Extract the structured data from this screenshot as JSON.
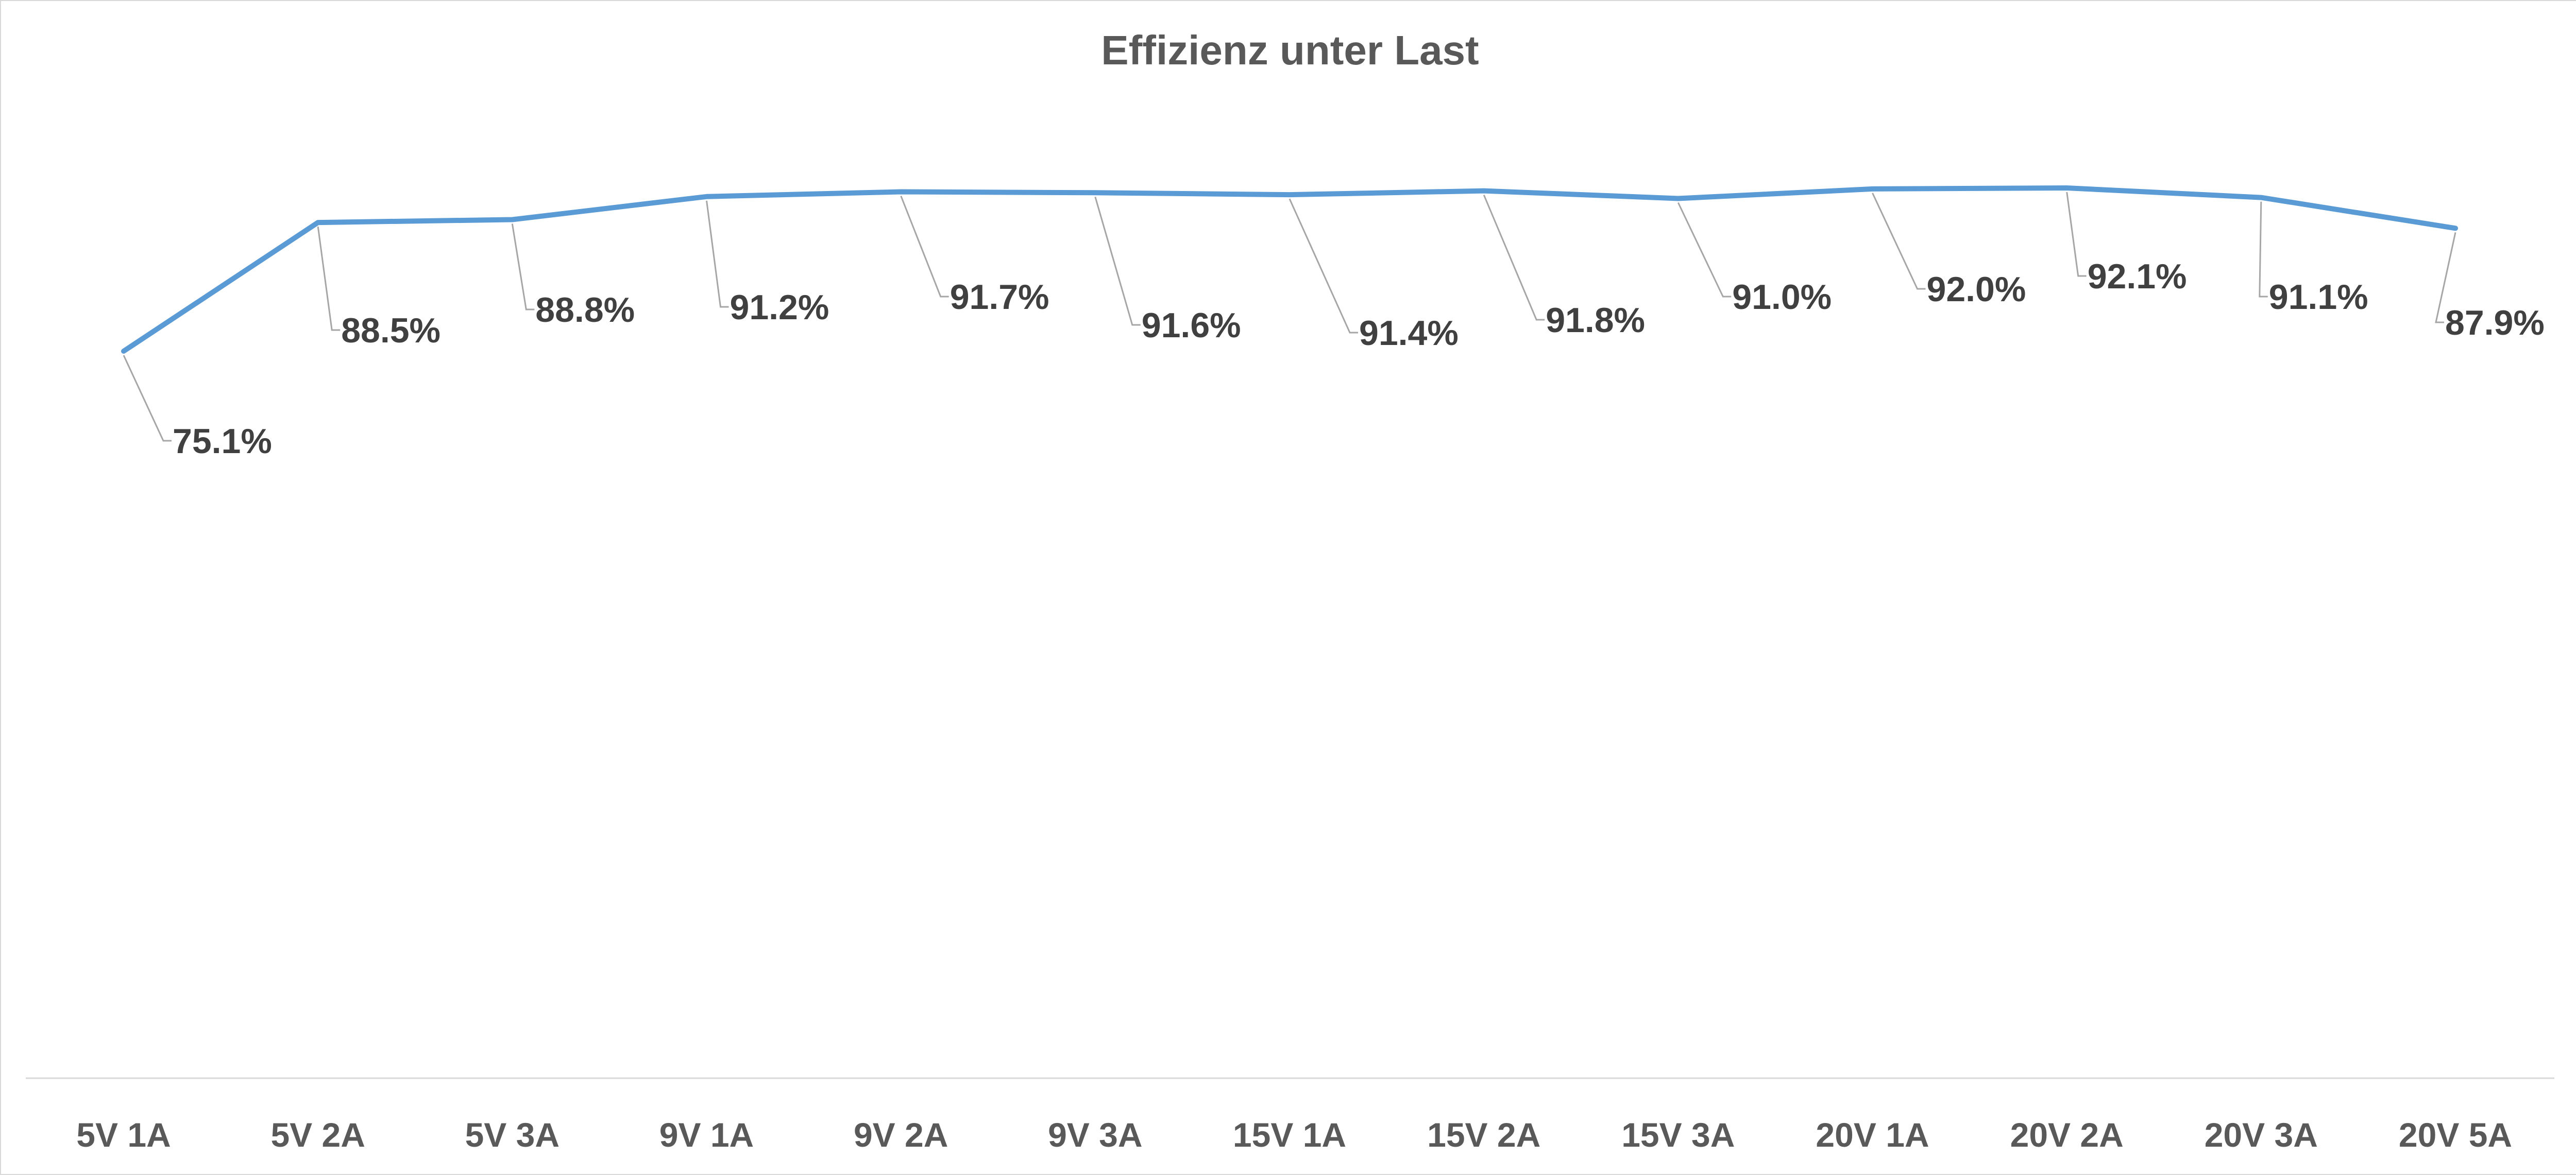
{
  "chart_data": {
    "type": "line",
    "title": "Effizienz unter Last",
    "xlabel": "",
    "ylabel": "",
    "categories": [
      "5V 1A",
      "5V 2A",
      "5V 3A",
      "9V 1A",
      "9V 2A",
      "9V 3A",
      "15V 1A",
      "15V 2A",
      "15V 3A",
      "20V 1A",
      "20V 2A",
      "20V 3A",
      "20V 5A"
    ],
    "series": [
      {
        "values": [
          75.1,
          88.5,
          88.8,
          91.2,
          91.7,
          91.6,
          91.4,
          91.8,
          91.0,
          92.0,
          92.1,
          91.1,
          87.9
        ],
        "data_labels": [
          "75.1%",
          "88.5%",
          "88.8%",
          "91.2%",
          "91.7%",
          "91.6%",
          "91.4%",
          "91.8%",
          "91.0%",
          "92.0%",
          "92.1%",
          "91.1%",
          "87.9%"
        ],
        "color": "#5b9bd5"
      }
    ],
    "ylim": [
      0,
      100
    ],
    "grid": false,
    "legend": "none",
    "axis_color": "#d9d9d9",
    "leader_line_color": "#a6a6a6"
  }
}
